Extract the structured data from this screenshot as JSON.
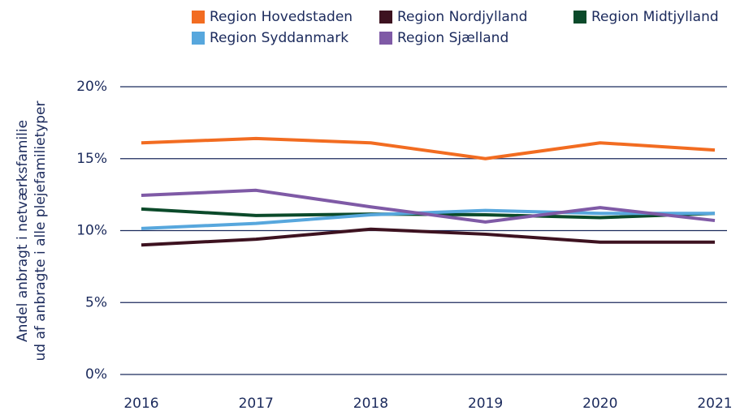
{
  "chart_data": {
    "type": "line",
    "ylabel": [
      "Andel anbragt i netværksfamilie",
      "ud af anbragte i alle plejefamilietyper"
    ],
    "categories": [
      "2016",
      "2017",
      "2018",
      "2019",
      "2020",
      "2021"
    ],
    "series": [
      {
        "name": "Region Hovedstaden",
        "color": "#f26c21",
        "values": [
          16.1,
          16.4,
          16.1,
          15.0,
          16.1,
          15.6
        ]
      },
      {
        "name": "Region Nordjylland",
        "color": "#3d1220",
        "values": [
          9.0,
          9.4,
          10.1,
          9.75,
          9.2,
          9.2
        ]
      },
      {
        "name": "Region Midtjylland",
        "color": "#0b4a2a",
        "values": [
          11.5,
          11.05,
          11.15,
          11.1,
          10.9,
          11.2
        ]
      },
      {
        "name": "Region Syddanmark",
        "color": "#57a7dd",
        "values": [
          10.15,
          10.5,
          11.1,
          11.4,
          11.2,
          11.2
        ]
      },
      {
        "name": "Region Sjælland",
        "color": "#7f5aa6",
        "values": [
          12.45,
          12.8,
          11.65,
          10.6,
          11.6,
          10.7
        ]
      }
    ],
    "ylim": [
      0,
      20
    ],
    "yticks": [
      {
        "value": 0,
        "label": "0%"
      },
      {
        "value": 5,
        "label": "5%"
      },
      {
        "value": 10,
        "label": "10%"
      },
      {
        "value": 15,
        "label": "15%"
      },
      {
        "value": 20,
        "label": "20%"
      }
    ],
    "grid": true
  }
}
